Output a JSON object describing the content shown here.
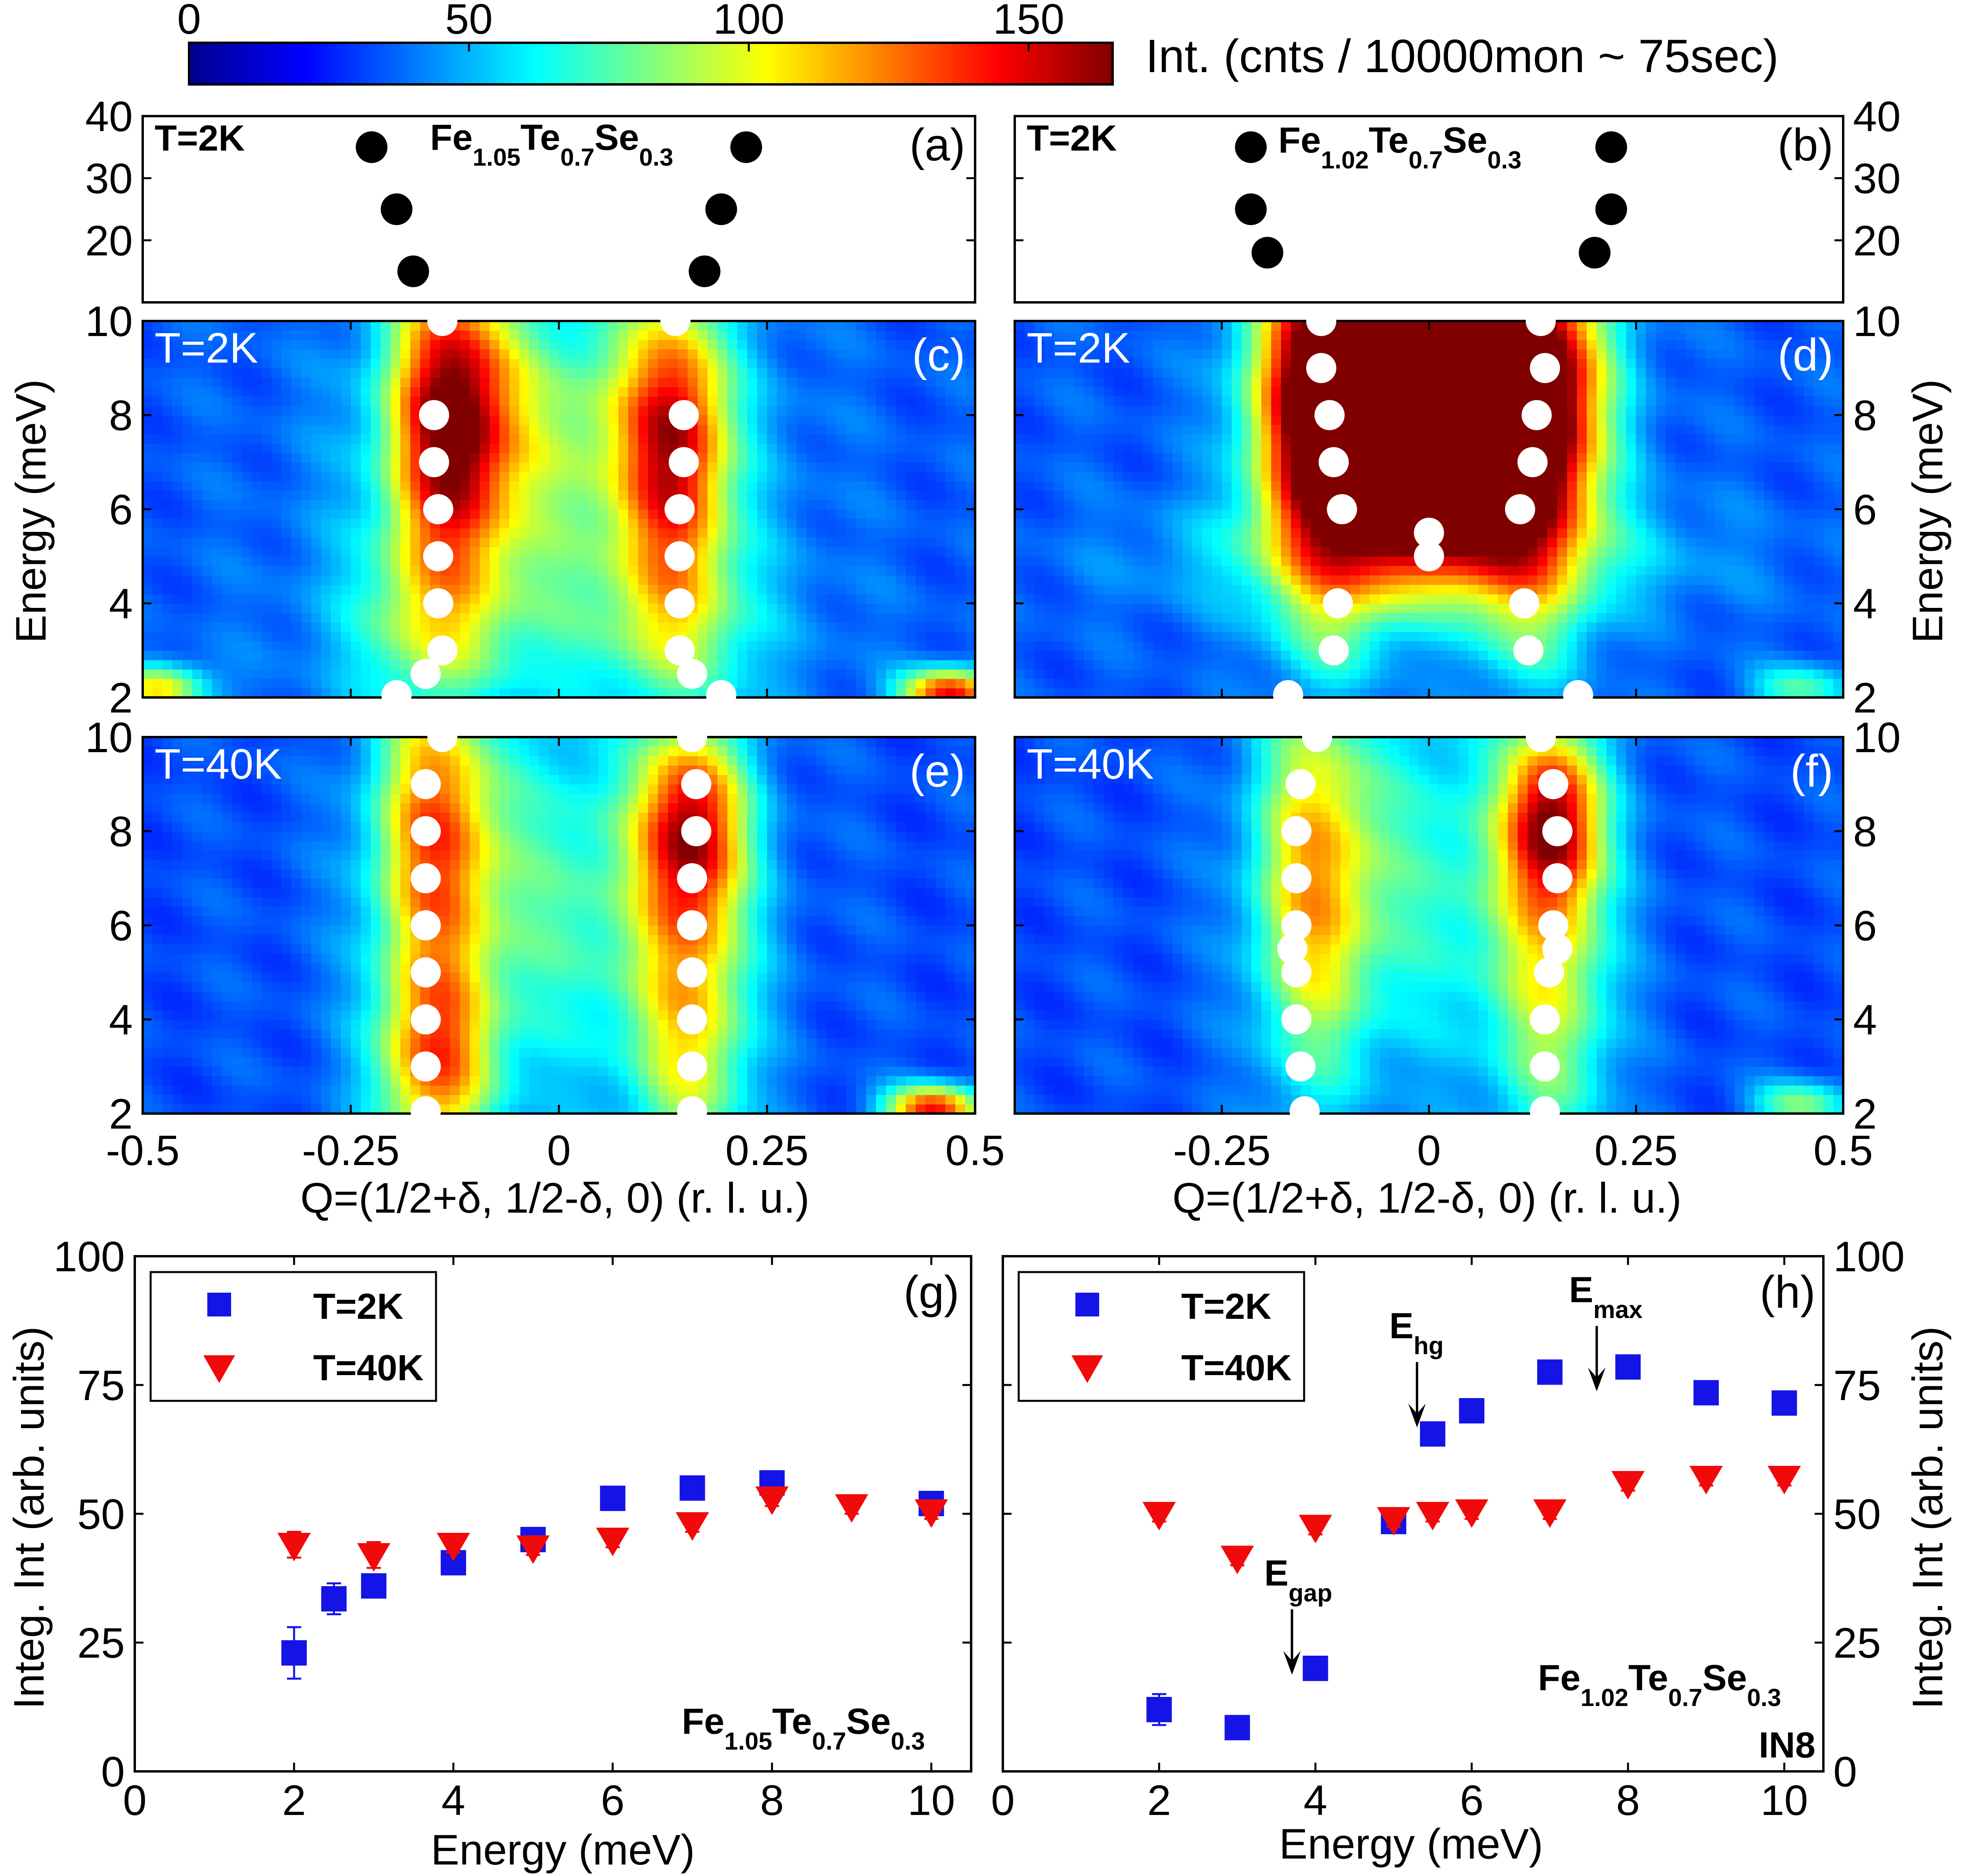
{
  "colorbar": {
    "ticks": [
      0,
      50,
      100,
      150
    ],
    "range": [
      0,
      165
    ],
    "label": "Int. (cnts / 10000mon ~ 75sec)"
  },
  "colors": {
    "square_marker": "#1414e6",
    "triangle_marker": "#f00a0a",
    "dispersion_point": "#ffffff",
    "peak_point": "#000000"
  },
  "chart_data": [
    {
      "id": "a",
      "type": "scatter",
      "panel_label": "(a)",
      "temperature": "T=2K",
      "compound": {
        "base": "Fe",
        "s1": "1.05",
        "m2": "Te",
        "s2": "0.7",
        "m3": "Se",
        "s3": "0.3"
      },
      "ylim": [
        10,
        40
      ],
      "yticks": [
        20,
        30,
        40
      ],
      "xlim": [
        -0.5,
        0.5
      ],
      "points": [
        [
          -0.225,
          35
        ],
        [
          -0.195,
          25
        ],
        [
          -0.175,
          15
        ],
        [
          0.225,
          35
        ],
        [
          0.195,
          25
        ],
        [
          0.175,
          15
        ]
      ]
    },
    {
      "id": "b",
      "type": "scatter",
      "panel_label": "(b)",
      "temperature": "T=2K",
      "compound": {
        "base": "Fe",
        "s1": "1.02",
        "m2": "Te",
        "s2": "0.7",
        "m3": "Se",
        "s3": "0.3"
      },
      "ylim": [
        10,
        40
      ],
      "yticks": [
        20,
        30,
        40
      ],
      "xlim": [
        -0.5,
        0.5
      ],
      "points": [
        [
          -0.215,
          35
        ],
        [
          -0.215,
          25
        ],
        [
          -0.195,
          18
        ],
        [
          0.22,
          35
        ],
        [
          0.22,
          25
        ],
        [
          0.2,
          18
        ]
      ]
    },
    {
      "id": "c",
      "type": "heatmap",
      "panel_label": "(c)",
      "temperature": "T=2K",
      "xlim": [
        -0.5,
        0.5
      ],
      "ylim": [
        2,
        10
      ],
      "yticks": [
        2,
        4,
        6,
        8,
        10
      ],
      "ylabel": "Energy (meV)",
      "background": 35,
      "blobs": [
        {
          "x": -0.13,
          "y": 8,
          "sx": 0.05,
          "sy": 2.3,
          "a": 115
        },
        {
          "x": 0.14,
          "y": 7.5,
          "sx": 0.045,
          "sy": 2.2,
          "a": 95
        },
        {
          "x": 0.0,
          "y": 7.5,
          "sx": 0.14,
          "sy": 2.2,
          "a": 50
        },
        {
          "x": -0.16,
          "y": 3.5,
          "sx": 0.06,
          "sy": 1.5,
          "a": 35
        },
        {
          "x": 0.15,
          "y": 3.5,
          "sx": 0.06,
          "sy": 1.5,
          "a": 30
        },
        {
          "x": 0.0,
          "y": 3.5,
          "sx": 0.18,
          "sy": 1.5,
          "a": 25
        },
        {
          "x": 0.47,
          "y": 2.1,
          "sx": 0.04,
          "sy": 0.35,
          "a": 110
        },
        {
          "x": -0.48,
          "y": 2.2,
          "sx": 0.04,
          "sy": 0.35,
          "a": 70
        }
      ],
      "points": [
        [
          -0.14,
          10
        ],
        [
          -0.15,
          8
        ],
        [
          -0.15,
          7
        ],
        [
          -0.145,
          6
        ],
        [
          -0.145,
          5
        ],
        [
          -0.145,
          4
        ],
        [
          -0.14,
          3
        ],
        [
          -0.16,
          2.5
        ],
        [
          -0.195,
          2.05
        ],
        [
          0.14,
          10
        ],
        [
          0.15,
          8
        ],
        [
          0.15,
          7
        ],
        [
          0.145,
          6
        ],
        [
          0.145,
          5
        ],
        [
          0.145,
          4
        ],
        [
          0.145,
          3
        ],
        [
          0.16,
          2.5
        ],
        [
          0.195,
          2.05
        ]
      ]
    },
    {
      "id": "d",
      "type": "heatmap",
      "panel_label": "(d)",
      "temperature": "T=2K",
      "xlim": [
        -0.5,
        0.5
      ],
      "ylim": [
        2,
        10
      ],
      "yticks": [
        2,
        4,
        6,
        8,
        10
      ],
      "ylabel": "Energy (meV)",
      "background": 35,
      "blobs": [
        {
          "x": -0.12,
          "y": 8.2,
          "sx": 0.06,
          "sy": 2.3,
          "a": 150
        },
        {
          "x": 0.12,
          "y": 8.2,
          "sx": 0.06,
          "sy": 2.3,
          "a": 150
        },
        {
          "x": 0.0,
          "y": 6.8,
          "sx": 0.09,
          "sy": 1.4,
          "a": 145
        },
        {
          "x": 0.0,
          "y": 9.5,
          "sx": 0.1,
          "sy": 1.3,
          "a": 100
        },
        {
          "x": 0.0,
          "y": 5.0,
          "sx": 0.2,
          "sy": 0.9,
          "a": 40
        },
        {
          "x": -0.12,
          "y": 3.3,
          "sx": 0.05,
          "sy": 1.0,
          "a": 25
        },
        {
          "x": 0.12,
          "y": 3.3,
          "sx": 0.05,
          "sy": 1.0,
          "a": 25
        },
        {
          "x": 0.45,
          "y": 2.2,
          "sx": 0.04,
          "sy": 0.35,
          "a": 40
        }
      ],
      "points": [
        [
          -0.13,
          10
        ],
        [
          -0.13,
          9
        ],
        [
          -0.12,
          8
        ],
        [
          -0.115,
          7
        ],
        [
          -0.105,
          6
        ],
        [
          -0.11,
          4
        ],
        [
          -0.115,
          3
        ],
        [
          -0.17,
          2.05
        ],
        [
          0.0,
          5.5
        ],
        [
          0.0,
          5.0
        ],
        [
          0.135,
          10
        ],
        [
          0.14,
          9
        ],
        [
          0.13,
          8
        ],
        [
          0.125,
          7
        ],
        [
          0.11,
          6
        ],
        [
          0.115,
          4
        ],
        [
          0.12,
          3
        ],
        [
          0.18,
          2.05
        ]
      ]
    },
    {
      "id": "e",
      "type": "heatmap",
      "panel_label": "(e)",
      "temperature": "T=40K",
      "xlim": [
        -0.5,
        0.5
      ],
      "ylim": [
        2,
        10
      ],
      "yticks": [
        2,
        4,
        6,
        8,
        10
      ],
      "background": 33,
      "blobs": [
        {
          "x": -0.15,
          "y": 8,
          "sx": 0.05,
          "sy": 2.5,
          "a": 85
        },
        {
          "x": -0.15,
          "y": 3,
          "sx": 0.05,
          "sy": 1.5,
          "a": 80
        },
        {
          "x": 0.16,
          "y": 8.2,
          "sx": 0.045,
          "sy": 1.5,
          "a": 100
        },
        {
          "x": 0.16,
          "y": 4,
          "sx": 0.05,
          "sy": 2.5,
          "a": 65
        },
        {
          "x": 0.0,
          "y": 6.5,
          "sx": 0.13,
          "sy": 3.0,
          "a": 40
        },
        {
          "x": 0.45,
          "y": 2.1,
          "sx": 0.04,
          "sy": 0.35,
          "a": 110
        }
      ],
      "points": [
        [
          -0.14,
          10
        ],
        [
          -0.16,
          9
        ],
        [
          -0.16,
          8
        ],
        [
          -0.16,
          7
        ],
        [
          -0.16,
          6
        ],
        [
          -0.16,
          5
        ],
        [
          -0.16,
          4
        ],
        [
          -0.16,
          3
        ],
        [
          -0.16,
          2.05
        ],
        [
          0.16,
          10
        ],
        [
          0.165,
          9
        ],
        [
          0.165,
          8
        ],
        [
          0.16,
          7
        ],
        [
          0.16,
          6
        ],
        [
          0.16,
          5
        ],
        [
          0.16,
          4
        ],
        [
          0.16,
          3
        ],
        [
          0.16,
          2.05
        ]
      ]
    },
    {
      "id": "f",
      "type": "heatmap",
      "panel_label": "(f)",
      "temperature": "T=40K",
      "xlim": [
        -0.5,
        0.5
      ],
      "ylim": [
        2,
        10
      ],
      "yticks": [
        2,
        4,
        6,
        8,
        10
      ],
      "ylabel": "Energy (meV)",
      "background": 33,
      "blobs": [
        {
          "x": -0.14,
          "y": 7,
          "sx": 0.05,
          "sy": 3.0,
          "a": 70
        },
        {
          "x": 0.15,
          "y": 8.3,
          "sx": 0.04,
          "sy": 1.3,
          "a": 95
        },
        {
          "x": 0.15,
          "y": 5,
          "sx": 0.05,
          "sy": 3.0,
          "a": 55
        },
        {
          "x": 0.0,
          "y": 7,
          "sx": 0.12,
          "sy": 3.0,
          "a": 35
        },
        {
          "x": 0.45,
          "y": 2.2,
          "sx": 0.04,
          "sy": 0.35,
          "a": 50
        }
      ],
      "points": [
        [
          -0.135,
          10
        ],
        [
          -0.155,
          9
        ],
        [
          -0.16,
          8
        ],
        [
          -0.16,
          7
        ],
        [
          -0.16,
          6
        ],
        [
          -0.165,
          5.5
        ],
        [
          -0.16,
          5
        ],
        [
          -0.16,
          4
        ],
        [
          -0.155,
          3
        ],
        [
          -0.15,
          2.05
        ],
        [
          0.135,
          10
        ],
        [
          0.15,
          9
        ],
        [
          0.155,
          8
        ],
        [
          0.155,
          7
        ],
        [
          0.15,
          6
        ],
        [
          0.155,
          5.5
        ],
        [
          0.145,
          5
        ],
        [
          0.14,
          4
        ],
        [
          0.14,
          3
        ],
        [
          0.14,
          2.05
        ]
      ]
    },
    {
      "id": "g",
      "type": "scatter",
      "panel_label": "(g)",
      "xlim": [
        0,
        10.5
      ],
      "ylim": [
        0,
        100
      ],
      "xticks": [
        0,
        2,
        4,
        6,
        8,
        10
      ],
      "yticks": [
        0,
        25,
        50,
        75,
        100
      ],
      "xlabel": "Energy (meV)",
      "ylabel": "Integ. Int (arb. units)",
      "legend": {
        "position": "top-left",
        "entries": [
          "T=2K",
          "T=40K"
        ]
      },
      "compound": {
        "base": "Fe",
        "s1": "1.05",
        "m2": "Te",
        "s2": "0.7",
        "m3": "Se",
        "s3": "0.3"
      },
      "series": [
        {
          "name": "T=2K",
          "marker": "square",
          "x": [
            2,
            2.5,
            3,
            4,
            5,
            6,
            7,
            8,
            10
          ],
          "y": [
            23,
            33.5,
            36,
            40.5,
            45,
            53,
            55,
            56,
            52
          ],
          "err": [
            5,
            3,
            1.5,
            1.5,
            1.5,
            1.5,
            1.5,
            1.5,
            1.5
          ]
        },
        {
          "name": "T=40K",
          "marker": "triangle",
          "x": [
            2,
            3,
            4,
            5,
            6,
            7,
            8,
            9,
            10
          ],
          "y": [
            44,
            42,
            44,
            43.5,
            45,
            48,
            53,
            51.5,
            50.5
          ],
          "err": [
            2.5,
            2.5,
            1.5,
            1.5,
            1.5,
            1.5,
            1.5,
            1.5,
            1.5
          ]
        }
      ]
    },
    {
      "id": "h",
      "type": "scatter",
      "panel_label": "(h)",
      "xlim": [
        0,
        10.5
      ],
      "ylim": [
        0,
        100
      ],
      "xticks": [
        0,
        2,
        4,
        6,
        8,
        10
      ],
      "yticks": [
        0,
        25,
        50,
        75,
        100
      ],
      "xlabel": "Energy (meV)",
      "ylabel": "Integ. Int (arb. units)",
      "legend": {
        "position": "top-left",
        "entries": [
          "T=2K",
          "T=40K"
        ]
      },
      "compound": {
        "base": "Fe",
        "s1": "1.02",
        "m2": "Te",
        "s2": "0.7",
        "m3": "Se",
        "s3": "0.3"
      },
      "instrument": "IN8",
      "series": [
        {
          "name": "T=2K",
          "marker": "square",
          "x": [
            2,
            3,
            4,
            5,
            5.5,
            6,
            7,
            8,
            9,
            10
          ],
          "y": [
            12,
            8.5,
            20,
            48.5,
            65.5,
            70,
            77.5,
            78.5,
            73.5,
            71.5
          ],
          "err": [
            3,
            1.5,
            1.5,
            1.5,
            1.5,
            1.5,
            1.5,
            1.5,
            1.5,
            1.5
          ]
        },
        {
          "name": "T=40K",
          "marker": "triangle",
          "x": [
            2,
            3,
            4,
            5,
            5.5,
            6,
            7,
            8,
            9,
            10
          ],
          "y": [
            50,
            41.5,
            47.5,
            49,
            50,
            50.5,
            50.5,
            56,
            57,
            57
          ],
          "err": [
            1.5,
            1.5,
            1.5,
            1.5,
            1.5,
            1.5,
            1.5,
            1.5,
            1.5,
            1.5
          ]
        }
      ],
      "annotations": [
        {
          "text": "E",
          "sub": "hg",
          "x": 5.3,
          "y": 66
        },
        {
          "text": "E",
          "sub": "max",
          "x": 7.6,
          "y": 73
        },
        {
          "text": "E",
          "sub": "gap",
          "x": 3.7,
          "y": 18
        }
      ]
    }
  ],
  "shared_axis": {
    "xticks": [
      "-0.5",
      "-0.25",
      "0",
      "0.25",
      "0.5"
    ],
    "xlabel": "Q=(1/2+δ, 1/2-δ, 0) (r. l. u.)"
  }
}
